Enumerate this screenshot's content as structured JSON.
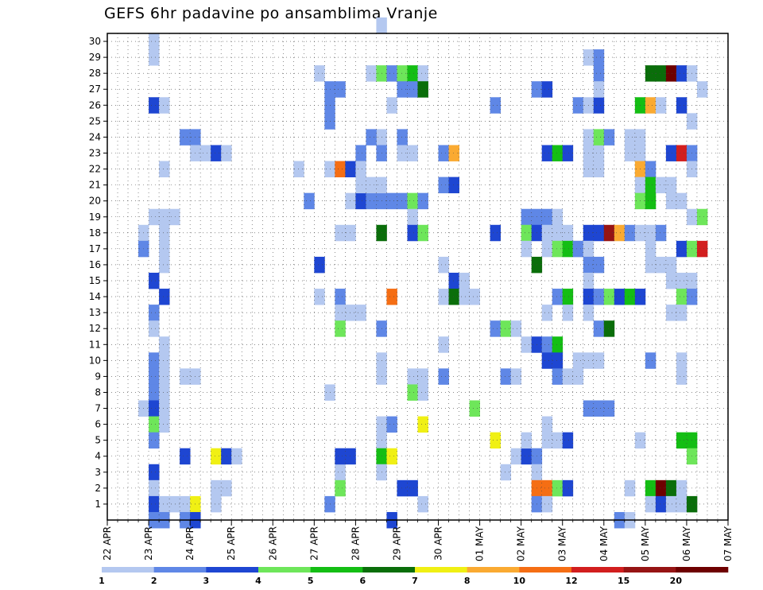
{
  "chart_data": {
    "type": "heatmap",
    "title": "GEFS 6hr padavine po ansamblima Vranje",
    "xlabel": "",
    "ylabel": "",
    "x_tick_labels": [
      "22 APR",
      "23 APR",
      "24 APR",
      "25 APR",
      "26 APR",
      "27 APR",
      "28 APR",
      "29 APR",
      "30 APR",
      "01 MAY",
      "02 MAY",
      "03 MAY",
      "04 MAY",
      "05 MAY",
      "06 MAY",
      "07 MAY"
    ],
    "x_step": "6h",
    "y_range": [
      1,
      30
    ],
    "y_tick_labels": [
      1,
      2,
      3,
      4,
      5,
      6,
      7,
      8,
      9,
      10,
      11,
      12,
      13,
      14,
      15,
      16,
      17,
      18,
      19,
      20,
      21,
      22,
      23,
      24,
      25,
      26,
      27,
      28,
      29,
      30
    ],
    "grid": true,
    "legend": {
      "placement": "bottom",
      "thresholds": [
        "1",
        "2",
        "3",
        "4",
        "5",
        "6",
        "7",
        "8",
        "10",
        "12",
        "15",
        "20"
      ],
      "colors": [
        "#b4c8f0",
        "#5f87e6",
        "#1e46d2",
        "#6ee65a",
        "#14be14",
        "#0a6e0a",
        "#f0f014",
        "#faaa32",
        "#f56e14",
        "#d21e1e",
        "#961414",
        "#6e0000"
      ]
    },
    "cells_format": "[time_step_index_from_22APR_00Z, ensemble_member, color_class_1_to_12]",
    "cells": [
      [
        4,
        30,
        1
      ],
      [
        4,
        29,
        1
      ],
      [
        4,
        26,
        3
      ],
      [
        5,
        26,
        1
      ],
      [
        5,
        22,
        1
      ],
      [
        4,
        19,
        1
      ],
      [
        5,
        19,
        1
      ],
      [
        6,
        19,
        1
      ],
      [
        3,
        18,
        1
      ],
      [
        5,
        18,
        1
      ],
      [
        3,
        17,
        2
      ],
      [
        5,
        17,
        1
      ],
      [
        5,
        16,
        1
      ],
      [
        4,
        15,
        3
      ],
      [
        5,
        14,
        3
      ],
      [
        4,
        13,
        2
      ],
      [
        4,
        12,
        1
      ],
      [
        5,
        11,
        1
      ],
      [
        4,
        10,
        2
      ],
      [
        5,
        10,
        1
      ],
      [
        4,
        9,
        2
      ],
      [
        5,
        9,
        1
      ],
      [
        4,
        8,
        2
      ],
      [
        5,
        8,
        1
      ],
      [
        3,
        7,
        1
      ],
      [
        4,
        7,
        3
      ],
      [
        5,
        7,
        1
      ],
      [
        4,
        6,
        4
      ],
      [
        5,
        6,
        1
      ],
      [
        4,
        5,
        2
      ],
      [
        4,
        3,
        3
      ],
      [
        4,
        2,
        1
      ],
      [
        4,
        1,
        3
      ],
      [
        5,
        1,
        1
      ],
      [
        6,
        1,
        1
      ],
      [
        7,
        1,
        1
      ],
      [
        4,
        0,
        2
      ],
      [
        5,
        0,
        2
      ],
      [
        7,
        0,
        2
      ],
      [
        7,
        24,
        2
      ],
      [
        8,
        24,
        2
      ],
      [
        8,
        23,
        1
      ],
      [
        9,
        23,
        1
      ],
      [
        10,
        23,
        3
      ],
      [
        11,
        23,
        1
      ],
      [
        7,
        9,
        1
      ],
      [
        8,
        9,
        1
      ],
      [
        7,
        4,
        3
      ],
      [
        8,
        1,
        7
      ],
      [
        8,
        0,
        3
      ],
      [
        10,
        4,
        7
      ],
      [
        11,
        4,
        3
      ],
      [
        12,
        4,
        1
      ],
      [
        10,
        2,
        1
      ],
      [
        11,
        2,
        1
      ],
      [
        10,
        1,
        1
      ],
      [
        18,
        22,
        1
      ],
      [
        19,
        20,
        2
      ],
      [
        20,
        28,
        1
      ],
      [
        21,
        27,
        2
      ],
      [
        22,
        27,
        2
      ],
      [
        21,
        26,
        2
      ],
      [
        20,
        16,
        3
      ],
      [
        20,
        14,
        1
      ],
      [
        21,
        22,
        1
      ],
      [
        22,
        22,
        9
      ],
      [
        23,
        22,
        3
      ],
      [
        21,
        25,
        2
      ],
      [
        21,
        8,
        1
      ],
      [
        22,
        18,
        1
      ],
      [
        23,
        18,
        1
      ],
      [
        22,
        14,
        2
      ],
      [
        22,
        13,
        1
      ],
      [
        23,
        13,
        1
      ],
      [
        24,
        13,
        1
      ],
      [
        22,
        12,
        4
      ],
      [
        22,
        3,
        1
      ],
      [
        22,
        2,
        4
      ],
      [
        21,
        1,
        2
      ],
      [
        22,
        4,
        3
      ],
      [
        23,
        4,
        3
      ],
      [
        24,
        23,
        2
      ],
      [
        23,
        20,
        1
      ],
      [
        24,
        20,
        3
      ],
      [
        25,
        20,
        2
      ],
      [
        26,
        20,
        2
      ],
      [
        27,
        20,
        2
      ],
      [
        28,
        20,
        2
      ],
      [
        24,
        21,
        1
      ],
      [
        25,
        21,
        1
      ],
      [
        26,
        21,
        1
      ],
      [
        24,
        22,
        1
      ],
      [
        25,
        28,
        1
      ],
      [
        26,
        28,
        4
      ],
      [
        27,
        28,
        2
      ],
      [
        28,
        28,
        4
      ],
      [
        29,
        28,
        5
      ],
      [
        30,
        28,
        1
      ],
      [
        26,
        31,
        1
      ],
      [
        27,
        26,
        1
      ],
      [
        26,
        24,
        1
      ],
      [
        26,
        23,
        2
      ],
      [
        26,
        18,
        6
      ],
      [
        26,
        12,
        2
      ],
      [
        26,
        10,
        1
      ],
      [
        26,
        9,
        1
      ],
      [
        26,
        6,
        1
      ],
      [
        27,
        6,
        2
      ],
      [
        26,
        5,
        1
      ],
      [
        26,
        4,
        5
      ],
      [
        27,
        4,
        7
      ],
      [
        26,
        3,
        1
      ],
      [
        28,
        2,
        3
      ],
      [
        29,
        2,
        3
      ],
      [
        27,
        0,
        3
      ],
      [
        25,
        24,
        2
      ],
      [
        28,
        27,
        2
      ],
      [
        29,
        27,
        2
      ],
      [
        30,
        27,
        6
      ],
      [
        28,
        24,
        2
      ],
      [
        28,
        23,
        1
      ],
      [
        29,
        23,
        1
      ],
      [
        29,
        20,
        4
      ],
      [
        30,
        20,
        2
      ],
      [
        29,
        19,
        1
      ],
      [
        29,
        18,
        3
      ],
      [
        30,
        18,
        4
      ],
      [
        27,
        14,
        9
      ],
      [
        29,
        9,
        1
      ],
      [
        30,
        9,
        1
      ],
      [
        29,
        8,
        4
      ],
      [
        30,
        8,
        1
      ],
      [
        30,
        6,
        7
      ],
      [
        30,
        1,
        1
      ],
      [
        32,
        23,
        2
      ],
      [
        33,
        23,
        8
      ],
      [
        32,
        21,
        2
      ],
      [
        33,
        21,
        3
      ],
      [
        32,
        16,
        1
      ],
      [
        32,
        14,
        1
      ],
      [
        33,
        15,
        3
      ],
      [
        34,
        15,
        1
      ],
      [
        33,
        14,
        6
      ],
      [
        35,
        14,
        1
      ],
      [
        34,
        14,
        1
      ],
      [
        32,
        11,
        1
      ],
      [
        32,
        9,
        2
      ],
      [
        35,
        7,
        4
      ],
      [
        37,
        18,
        3
      ],
      [
        37,
        26,
        2
      ],
      [
        37,
        12,
        2
      ],
      [
        38,
        12,
        4
      ],
      [
        39,
        12,
        1
      ],
      [
        37,
        5,
        7
      ],
      [
        38,
        3,
        1
      ],
      [
        39,
        4,
        1
      ],
      [
        38,
        9,
        2
      ],
      [
        39,
        9,
        1
      ],
      [
        41,
        27,
        2
      ],
      [
        42,
        27,
        3
      ],
      [
        40,
        4,
        3
      ],
      [
        41,
        4,
        2
      ],
      [
        41,
        3,
        1
      ],
      [
        41,
        2,
        9
      ],
      [
        42,
        2,
        9
      ],
      [
        41,
        1,
        2
      ],
      [
        42,
        1,
        1
      ],
      [
        40,
        19,
        2
      ],
      [
        41,
        19,
        2
      ],
      [
        42,
        19,
        2
      ],
      [
        43,
        19,
        1
      ],
      [
        40,
        18,
        4
      ],
      [
        41,
        18,
        3
      ],
      [
        42,
        18,
        1
      ],
      [
        43,
        18,
        1
      ],
      [
        44,
        18,
        1
      ],
      [
        40,
        17,
        1
      ],
      [
        41,
        16,
        6
      ],
      [
        42,
        17,
        1
      ],
      [
        43,
        17,
        4
      ],
      [
        44,
        17,
        5
      ],
      [
        45,
        17,
        1
      ],
      [
        40,
        11,
        1
      ],
      [
        41,
        11,
        3
      ],
      [
        42,
        11,
        2
      ],
      [
        43,
        11,
        5
      ],
      [
        42,
        10,
        3
      ],
      [
        43,
        10,
        3
      ],
      [
        43,
        9,
        2
      ],
      [
        44,
        9,
        1
      ],
      [
        42,
        6,
        1
      ],
      [
        42,
        5,
        1
      ],
      [
        43,
        5,
        1
      ],
      [
        44,
        5,
        3
      ],
      [
        42,
        23,
        3
      ],
      [
        43,
        23,
        5
      ],
      [
        44,
        23,
        3
      ],
      [
        42,
        13,
        1
      ],
      [
        43,
        14,
        2
      ],
      [
        44,
        14,
        5
      ],
      [
        44,
        13,
        1
      ],
      [
        43,
        2,
        4
      ],
      [
        44,
        2,
        3
      ],
      [
        40,
        5,
        1
      ],
      [
        45,
        10,
        1
      ],
      [
        46,
        10,
        1
      ],
      [
        47,
        10,
        1
      ],
      [
        45,
        9,
        1
      ],
      [
        46,
        14,
        1
      ],
      [
        46,
        24,
        1
      ],
      [
        46,
        23,
        1
      ],
      [
        47,
        23,
        1
      ],
      [
        47,
        24,
        4
      ],
      [
        48,
        24,
        2
      ],
      [
        45,
        26,
        2
      ],
      [
        46,
        26,
        1
      ],
      [
        47,
        26,
        3
      ],
      [
        46,
        29,
        1
      ],
      [
        47,
        29,
        2
      ],
      [
        47,
        28,
        2
      ],
      [
        47,
        27,
        1
      ],
      [
        46,
        22,
        1
      ],
      [
        47,
        22,
        1
      ],
      [
        46,
        18,
        3
      ],
      [
        47,
        18,
        3
      ],
      [
        48,
        18,
        11
      ],
      [
        49,
        18,
        8
      ],
      [
        50,
        18,
        2
      ],
      [
        51,
        18,
        1
      ],
      [
        52,
        18,
        1
      ],
      [
        53,
        18,
        2
      ],
      [
        45,
        17,
        2
      ],
      [
        46,
        17,
        1
      ],
      [
        46,
        16,
        2
      ],
      [
        47,
        16,
        2
      ],
      [
        46,
        15,
        1
      ],
      [
        46,
        14,
        3
      ],
      [
        47,
        14,
        2
      ],
      [
        48,
        14,
        4
      ],
      [
        49,
        14,
        3
      ],
      [
        50,
        14,
        5
      ],
      [
        51,
        14,
        3
      ],
      [
        46,
        13,
        1
      ],
      [
        47,
        12,
        2
      ],
      [
        48,
        12,
        6
      ],
      [
        46,
        7,
        2
      ],
      [
        47,
        7,
        2
      ],
      [
        48,
        7,
        2
      ],
      [
        50,
        23,
        1
      ],
      [
        51,
        23,
        1
      ],
      [
        51,
        22,
        8
      ],
      [
        52,
        22,
        2
      ],
      [
        51,
        21,
        1
      ],
      [
        51,
        20,
        4
      ],
      [
        52,
        20,
        5
      ],
      [
        52,
        21,
        5
      ],
      [
        53,
        21,
        1
      ],
      [
        54,
        21,
        1
      ],
      [
        51,
        26,
        5
      ],
      [
        52,
        26,
        8
      ],
      [
        53,
        26,
        1
      ],
      [
        50,
        24,
        1
      ],
      [
        51,
        24,
        1
      ],
      [
        52,
        28,
        6
      ],
      [
        53,
        28,
        6
      ],
      [
        54,
        28,
        12
      ],
      [
        55,
        28,
        3
      ],
      [
        56,
        28,
        1
      ],
      [
        52,
        17,
        1
      ],
      [
        52,
        16,
        1
      ],
      [
        53,
        16,
        1
      ],
      [
        54,
        16,
        1
      ],
      [
        55,
        17,
        3
      ],
      [
        56,
        17,
        4
      ],
      [
        57,
        17,
        10
      ],
      [
        54,
        15,
        1
      ],
      [
        55,
        15,
        1
      ],
      [
        56,
        15,
        1
      ],
      [
        55,
        14,
        4
      ],
      [
        56,
        14,
        2
      ],
      [
        54,
        13,
        1
      ],
      [
        55,
        13,
        1
      ],
      [
        52,
        10,
        2
      ],
      [
        51,
        5,
        1
      ],
      [
        52,
        2,
        5
      ],
      [
        53,
        2,
        12
      ],
      [
        54,
        2,
        6
      ],
      [
        55,
        2,
        1
      ],
      [
        52,
        1,
        1
      ],
      [
        53,
        1,
        3
      ],
      [
        54,
        1,
        1
      ],
      [
        55,
        1,
        1
      ],
      [
        56,
        1,
        6
      ],
      [
        55,
        5,
        5
      ],
      [
        56,
        5,
        5
      ],
      [
        56,
        4,
        4
      ],
      [
        55,
        9,
        1
      ],
      [
        54,
        23,
        3
      ],
      [
        55,
        23,
        10
      ],
      [
        56,
        23,
        2
      ],
      [
        55,
        26,
        3
      ],
      [
        56,
        22,
        1
      ],
      [
        56,
        19,
        1
      ],
      [
        57,
        19,
        4
      ],
      [
        57,
        27,
        1
      ],
      [
        56,
        25,
        1
      ],
      [
        54,
        20,
        1
      ],
      [
        55,
        20,
        1
      ],
      [
        55,
        10,
        1
      ],
      [
        50,
        2,
        1
      ],
      [
        49,
        0,
        2
      ],
      [
        50,
        0,
        1
      ]
    ]
  }
}
